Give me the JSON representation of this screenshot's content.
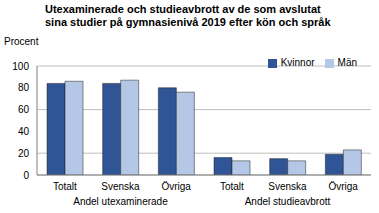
{
  "chart_data": {
    "type": "bar",
    "title": "Utexaminerade och studieavbrott av de som avslutat sina studier på gymnasienivå 2019 efter kön och språk",
    "y_label": "Procent",
    "categories": [
      "Totalt",
      "Svenska",
      "Övriga",
      "Totalt",
      "Svenska",
      "Övriga"
    ],
    "group_labels": [
      "Andel utexaminerade",
      "Andel studieavbrott"
    ],
    "series": [
      {
        "name": "Kvinnor",
        "color": "#2f5597",
        "values": [
          84,
          84,
          80,
          16,
          15,
          19
        ]
      },
      {
        "name": "Män",
        "color": "#b4c7e7",
        "values": [
          86,
          87,
          76,
          13,
          13,
          23
        ]
      }
    ],
    "ylim": [
      0,
      100
    ],
    "yticks": [
      0,
      20,
      40,
      60,
      80,
      100
    ],
    "grid": true,
    "legend": "upper right"
  }
}
